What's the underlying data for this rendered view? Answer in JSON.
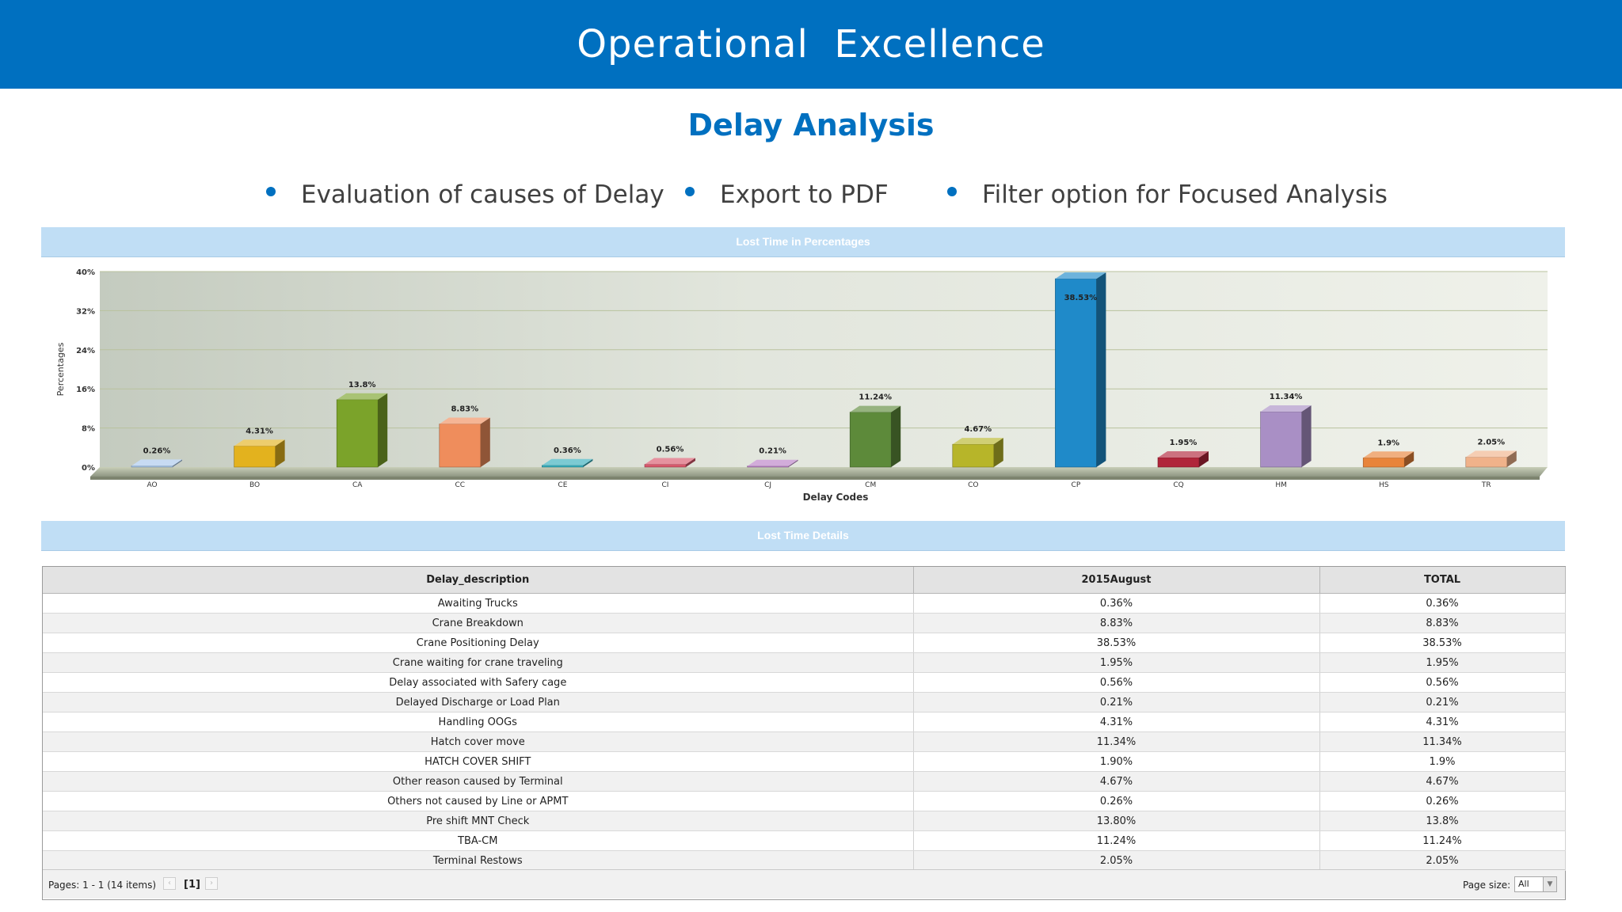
{
  "header": {
    "title": "Operational  Excellence"
  },
  "subtitle": "Delay Analysis",
  "bullets": [
    "Evaluation of causes of Delay",
    "Export to PDF",
    "Filter option for Focused Analysis"
  ],
  "chart_panel": {
    "title": "Lost Time in Percentages"
  },
  "chart_data": {
    "type": "bar",
    "title": "Lost Time in Percentages",
    "xlabel": "Delay Codes",
    "ylabel": "Percentages",
    "ylim": [
      0,
      40
    ],
    "yticks": [
      "0%",
      "8%",
      "16%",
      "24%",
      "32%",
      "40%"
    ],
    "grid": true,
    "categories": [
      "AO",
      "BO",
      "CA",
      "CC",
      "CE",
      "CI",
      "CJ",
      "CM",
      "CO",
      "CP",
      "CQ",
      "HM",
      "HS",
      "TR"
    ],
    "values": [
      0.26,
      4.31,
      13.8,
      8.83,
      0.36,
      0.56,
      0.21,
      11.24,
      4.67,
      38.53,
      1.95,
      11.34,
      1.9,
      2.05
    ],
    "labels": [
      "0.26%",
      "4.31%",
      "13.8%",
      "8.83%",
      "0.36%",
      "0.56%",
      "0.21%",
      "11.24%",
      "4.67%",
      "38.53%",
      "1.95%",
      "11.34%",
      "1.9%",
      "2.05%"
    ],
    "colors": [
      "#a9c8ec",
      "#e3b21e",
      "#7ba32a",
      "#ef8d5c",
      "#35aebc",
      "#d8586c",
      "#b97fc6",
      "#5d8a3a",
      "#b7b529",
      "#1f8ac9",
      "#b0253a",
      "#a98fc5",
      "#e8843a",
      "#f0b28a"
    ]
  },
  "details_panel": {
    "title": "Lost Time Details"
  },
  "table": {
    "columns": [
      "Delay_description",
      "2015August",
      "TOTAL"
    ],
    "rows": [
      [
        "Awaiting Trucks",
        "0.36%",
        "0.36%"
      ],
      [
        "Crane Breakdown",
        "8.83%",
        "8.83%"
      ],
      [
        "Crane Positioning Delay",
        "38.53%",
        "38.53%"
      ],
      [
        "Crane waiting for crane traveling",
        "1.95%",
        "1.95%"
      ],
      [
        "Delay associated with Safery cage",
        "0.56%",
        "0.56%"
      ],
      [
        "Delayed Discharge or Load Plan",
        "0.21%",
        "0.21%"
      ],
      [
        "Handling OOGs",
        "4.31%",
        "4.31%"
      ],
      [
        "Hatch cover move",
        "11.34%",
        "11.34%"
      ],
      [
        "HATCH COVER SHIFT",
        "1.90%",
        "1.9%"
      ],
      [
        "Other reason caused by Terminal",
        "4.67%",
        "4.67%"
      ],
      [
        "Others not caused by Line or APMT",
        "0.26%",
        "0.26%"
      ],
      [
        "Pre shift MNT Check",
        "13.80%",
        "13.8%"
      ],
      [
        "TBA-CM",
        "11.24%",
        "11.24%"
      ],
      [
        "Terminal Restows",
        "2.05%",
        "2.05%"
      ]
    ]
  },
  "pager": {
    "info": "Pages: 1 - 1 (14 items)",
    "current_page": "[1]",
    "prev_icon": "chevron-left-icon",
    "next_icon": "chevron-right-icon",
    "page_size_label": "Page size:",
    "page_size_value": "All"
  }
}
